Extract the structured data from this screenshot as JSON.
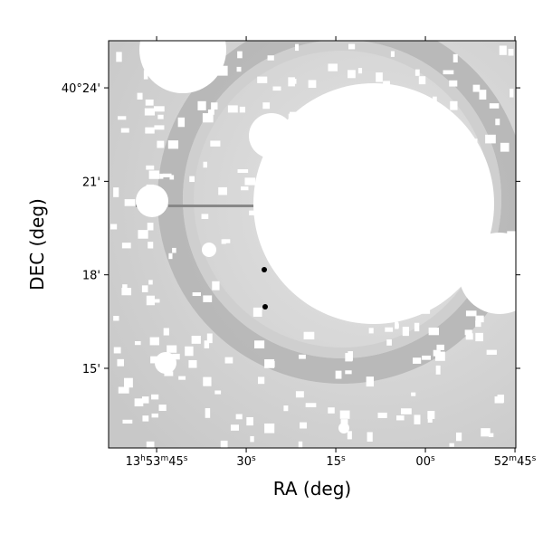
{
  "chart_data": {
    "type": "image",
    "xlabel": "RA (deg)",
    "ylabel": "DEC (deg)",
    "xlim": [
      208.471,
      208.1869
    ],
    "ylim": [
      40.2074,
      40.4252
    ],
    "xticks": [
      {
        "value": 208.4375,
        "label": "13h53m45s"
      },
      {
        "value": 208.375,
        "label": "30s"
      },
      {
        "value": 208.3125,
        "label": "15s"
      },
      {
        "value": 208.25,
        "label": "00s"
      },
      {
        "value": 208.1875,
        "label": "52m45s"
      }
    ],
    "yticks": [
      {
        "value": 40.4,
        "label": "40°24'"
      },
      {
        "value": 40.35,
        "label": "21'"
      },
      {
        "value": 40.3,
        "label": "18'"
      },
      {
        "value": 40.25,
        "label": "15'"
      }
    ]
  }
}
